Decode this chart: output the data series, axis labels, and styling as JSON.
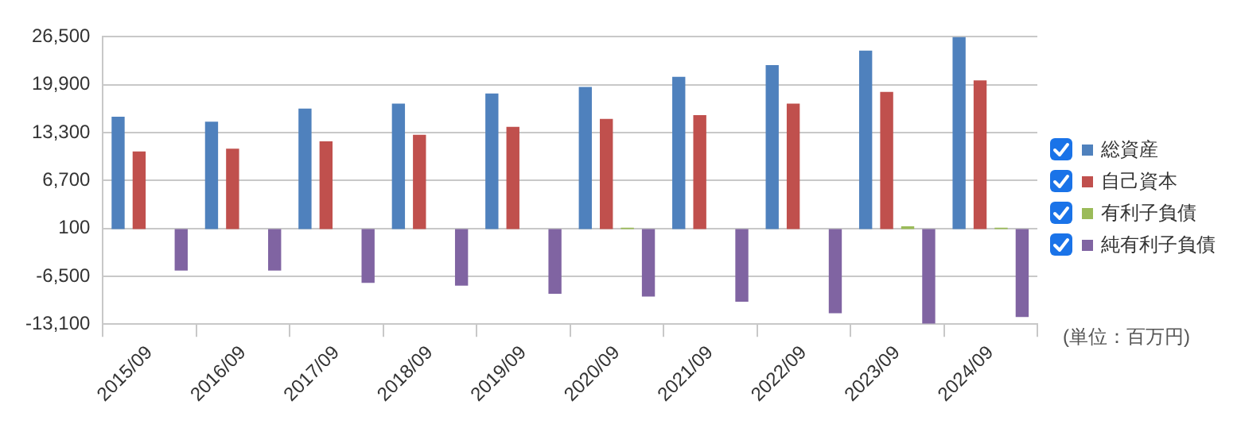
{
  "chart_data": {
    "type": "bar",
    "categories": [
      "2015/09",
      "2016/09",
      "2017/09",
      "2018/09",
      "2019/09",
      "2020/09",
      "2021/09",
      "2022/09",
      "2023/09",
      "2024/09"
    ],
    "series": [
      {
        "name": "総資産",
        "color": "#4f81bd",
        "values": [
          15500,
          14800,
          16600,
          17300,
          18700,
          19600,
          21000,
          22600,
          24600,
          26500
        ]
      },
      {
        "name": "自己資本",
        "color": "#c0504d",
        "values": [
          10700,
          11100,
          12100,
          13000,
          14100,
          15200,
          15700,
          17300,
          18900,
          20500
        ]
      },
      {
        "name": "有利子負債",
        "color": "#9bbb59",
        "values": [
          0,
          0,
          0,
          0,
          0,
          200,
          0,
          0,
          400,
          200
        ]
      },
      {
        "name": "純有利子負債",
        "color": "#8064a2",
        "values": [
          -5700,
          -5700,
          -7400,
          -7800,
          -8900,
          -9300,
          -10000,
          -11600,
          -13000,
          -12100
        ]
      }
    ],
    "ylim": [
      -13100,
      26500
    ],
    "yticks": [
      {
        "value": -13100,
        "label": "-13,100"
      },
      {
        "value": -6500,
        "label": "-6,500"
      },
      100,
      {
        "value": 6700,
        "label": "6,700"
      },
      {
        "value": 13300,
        "label": "13,300"
      },
      {
        "value": 19900,
        "label": "19,900"
      },
      {
        "value": 26500,
        "label": "26,500"
      }
    ],
    "grid": "y",
    "legend": "right",
    "annotations": [
      "(単位：百万円)"
    ]
  }
}
